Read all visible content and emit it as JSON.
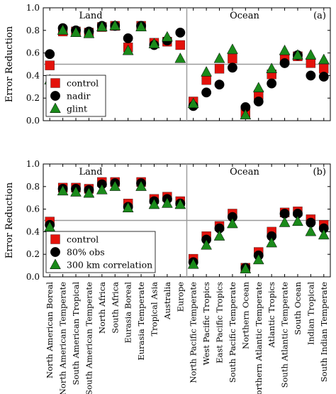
{
  "colors": {
    "control": "#e3120b",
    "nadir": "#000000",
    "glint": "#1a8a1a",
    "reference_line": "#9a9a9a"
  },
  "categories": [
    "North American Boreal",
    "North American Temperate",
    "South American Tropical",
    "South American Temperate",
    "North Africa",
    "South Africa",
    "Eurasia Boreal",
    "Eurasia Temperate",
    "Tropical Asia",
    "Australia",
    "Europe",
    "North Pacific Temperate",
    "West Pacific Tropics",
    "East Pacific Tropics",
    "South Pacific Temperate",
    "Northern Ocean",
    "Northern Atlantic Temperate",
    "Atlantic Tropics",
    "South Atlantic Temperate",
    "South Ocean",
    "Indian Tropical",
    "South Indian Temperate"
  ],
  "chart_data": [
    {
      "type": "scatter",
      "panel_tag": "(a)",
      "ylabel": "Error Reduction",
      "ylim": [
        0,
        1.0
      ],
      "yticks": [
        "0.0",
        "0.2",
        "0.4",
        "0.6",
        "0.8",
        "1.0"
      ],
      "reference_y": 0.5,
      "region_labels": [
        "Land",
        "Ocean"
      ],
      "legend_position": "lower-left",
      "series": [
        {
          "name": "control",
          "marker": "square",
          "values": [
            0.49,
            0.79,
            0.79,
            0.78,
            0.83,
            0.84,
            0.65,
            0.84,
            0.69,
            0.7,
            0.67,
            0.17,
            0.36,
            0.46,
            0.55,
            0.07,
            0.23,
            0.41,
            0.55,
            0.57,
            0.51,
            0.46
          ]
        },
        {
          "name": "nadir",
          "marker": "circle",
          "values": [
            0.59,
            0.82,
            0.8,
            0.79,
            0.84,
            0.84,
            0.73,
            0.84,
            0.67,
            0.71,
            0.78,
            0.13,
            0.25,
            0.32,
            0.47,
            0.12,
            0.17,
            0.33,
            0.51,
            0.58,
            0.4,
            0.39
          ]
        },
        {
          "name": "glint",
          "marker": "triangle",
          "values": [
            0.36,
            0.8,
            0.78,
            0.77,
            0.83,
            0.84,
            0.62,
            0.83,
            0.68,
            0.74,
            0.55,
            0.15,
            0.43,
            0.55,
            0.63,
            0.05,
            0.29,
            0.46,
            0.62,
            0.58,
            0.58,
            0.54
          ]
        }
      ]
    },
    {
      "type": "scatter",
      "panel_tag": "(b)",
      "ylabel": "Error Reduction",
      "ylim": [
        0,
        1.0
      ],
      "yticks": [
        "0.0",
        "0.2",
        "0.4",
        "0.6",
        "0.8",
        "1.0"
      ],
      "reference_y": 0.5,
      "region_labels": [
        "Land",
        "Ocean"
      ],
      "legend_position": "lower-left",
      "series": [
        {
          "name": "control",
          "marker": "square",
          "values": [
            0.49,
            0.79,
            0.79,
            0.78,
            0.84,
            0.84,
            0.65,
            0.84,
            0.69,
            0.71,
            0.67,
            0.16,
            0.36,
            0.45,
            0.56,
            0.08,
            0.22,
            0.4,
            0.57,
            0.58,
            0.51,
            0.46
          ]
        },
        {
          "name": "80% obs",
          "marker": "circle",
          "values": [
            0.46,
            0.78,
            0.78,
            0.77,
            0.82,
            0.83,
            0.62,
            0.83,
            0.67,
            0.69,
            0.65,
            0.13,
            0.33,
            0.43,
            0.53,
            0.08,
            0.19,
            0.36,
            0.56,
            0.56,
            0.48,
            0.43
          ]
        },
        {
          "name": "300 km correlation",
          "marker": "triangle",
          "values": [
            0.44,
            0.76,
            0.75,
            0.74,
            0.77,
            0.8,
            0.61,
            0.8,
            0.64,
            0.65,
            0.64,
            0.11,
            0.28,
            0.36,
            0.47,
            0.07,
            0.15,
            0.3,
            0.48,
            0.49,
            0.4,
            0.37
          ]
        }
      ]
    }
  ]
}
